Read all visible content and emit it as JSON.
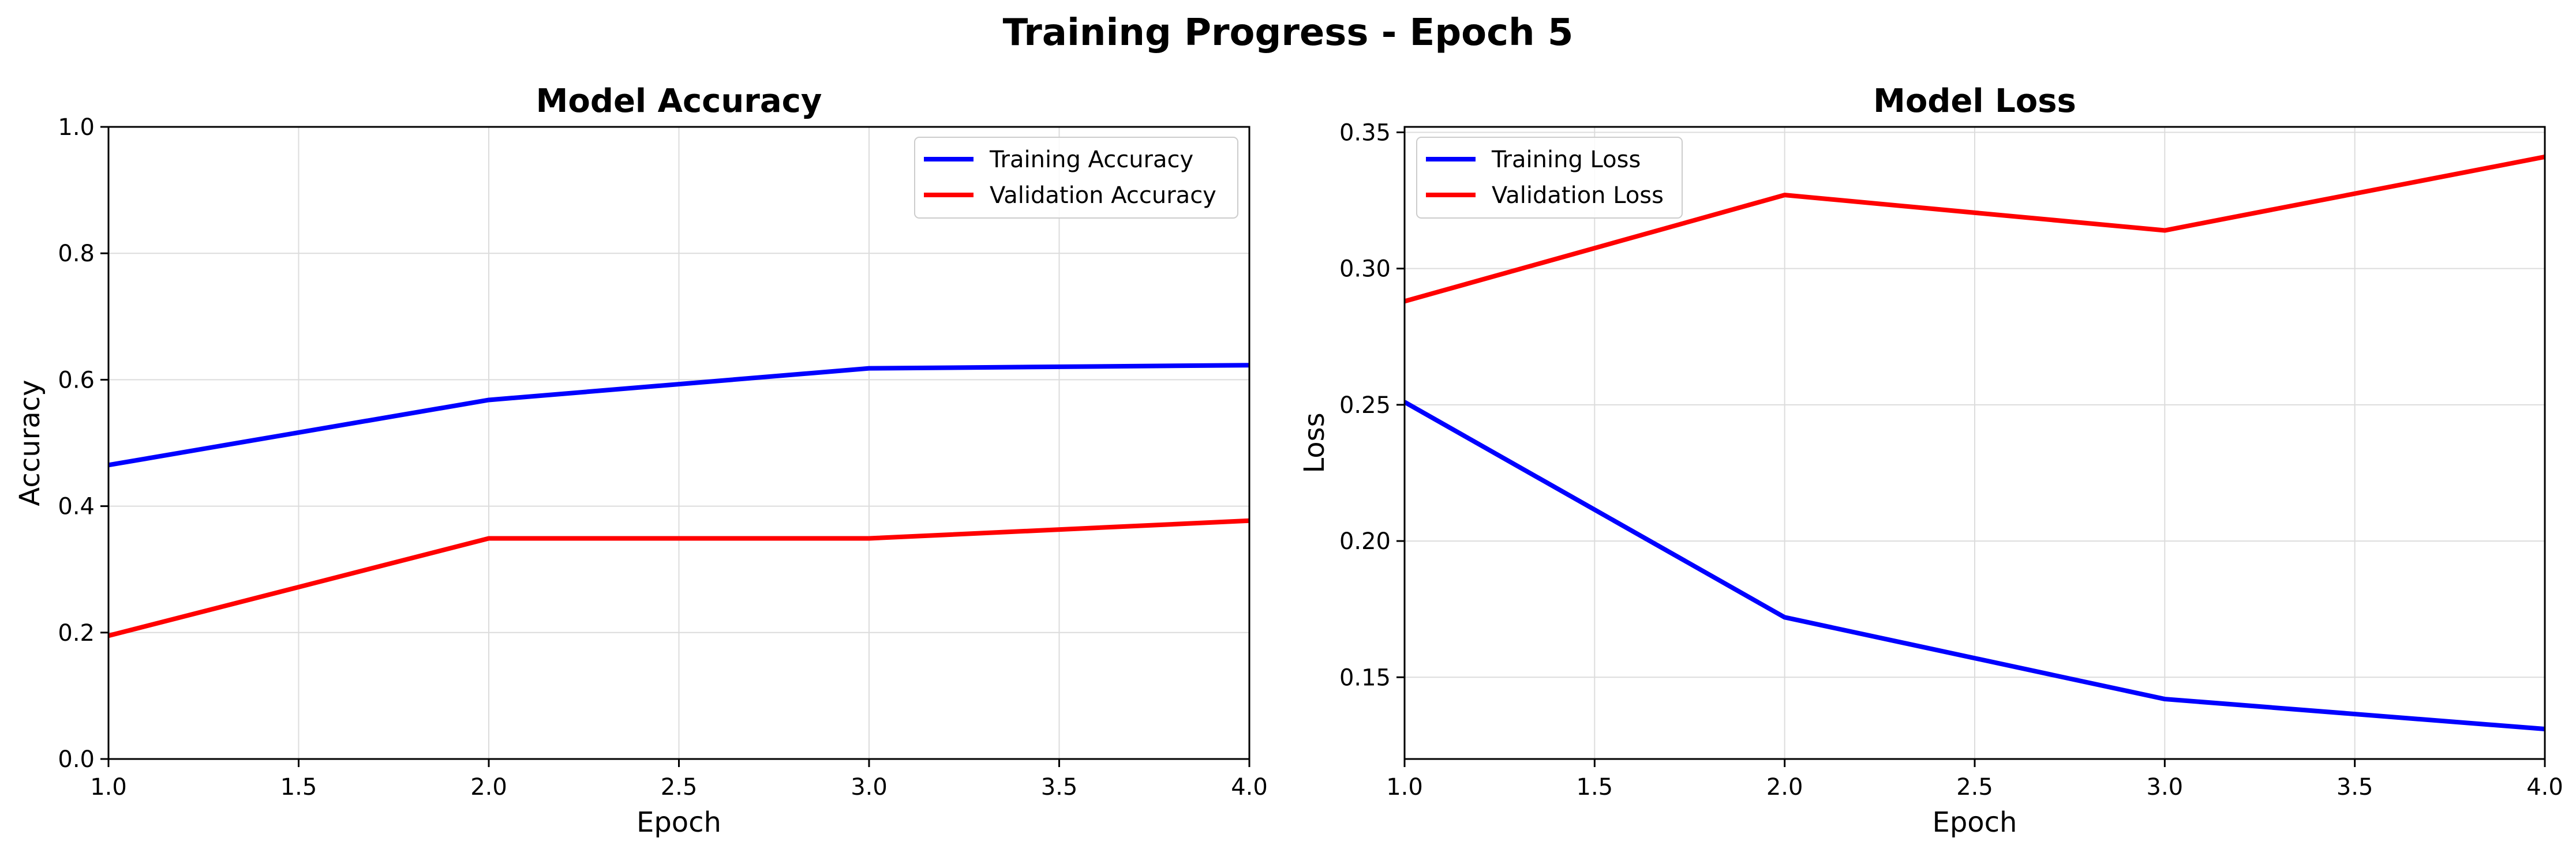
{
  "figure": {
    "title": "Training Progress - Epoch 5"
  },
  "chart_data": [
    {
      "type": "line",
      "title": "Model Accuracy",
      "xlabel": "Epoch",
      "ylabel": "Accuracy",
      "xlim": [
        1.0,
        4.0
      ],
      "ylim": [
        0.0,
        1.0
      ],
      "xticks": [
        1.0,
        1.5,
        2.0,
        2.5,
        3.0,
        3.5,
        4.0
      ],
      "xtick_labels": [
        "1.0",
        "1.5",
        "2.0",
        "2.5",
        "3.0",
        "3.5",
        "4.0"
      ],
      "yticks": [
        0.0,
        0.2,
        0.4,
        0.6,
        0.8,
        1.0
      ],
      "ytick_labels": [
        "0.0",
        "0.2",
        "0.4",
        "0.6",
        "0.8",
        "1.0"
      ],
      "grid": true,
      "legend_position": "top-right",
      "x": [
        1,
        2,
        3,
        4
      ],
      "series": [
        {
          "name": "Training Accuracy",
          "color": "#0000ff",
          "values": [
            0.465,
            0.568,
            0.618,
            0.623
          ]
        },
        {
          "name": "Validation Accuracy",
          "color": "#ff0000",
          "values": [
            0.195,
            0.349,
            0.349,
            0.377
          ]
        }
      ]
    },
    {
      "type": "line",
      "title": "Model Loss",
      "xlabel": "Epoch",
      "ylabel": "Loss",
      "xlim": [
        1.0,
        4.0
      ],
      "ylim": [
        0.12,
        0.352
      ],
      "xticks": [
        1.0,
        1.5,
        2.0,
        2.5,
        3.0,
        3.5,
        4.0
      ],
      "xtick_labels": [
        "1.0",
        "1.5",
        "2.0",
        "2.5",
        "3.0",
        "3.5",
        "4.0"
      ],
      "yticks": [
        0.15,
        0.2,
        0.25,
        0.3,
        0.35
      ],
      "ytick_labels": [
        "0.15",
        "0.20",
        "0.25",
        "0.30",
        "0.35"
      ],
      "grid": true,
      "legend_position": "top-left",
      "x": [
        1,
        2,
        3,
        4
      ],
      "series": [
        {
          "name": "Training Loss",
          "color": "#0000ff",
          "values": [
            0.251,
            0.172,
            0.142,
            0.131
          ]
        },
        {
          "name": "Validation Loss",
          "color": "#ff0000",
          "values": [
            0.288,
            0.327,
            0.314,
            0.341
          ]
        }
      ]
    }
  ]
}
